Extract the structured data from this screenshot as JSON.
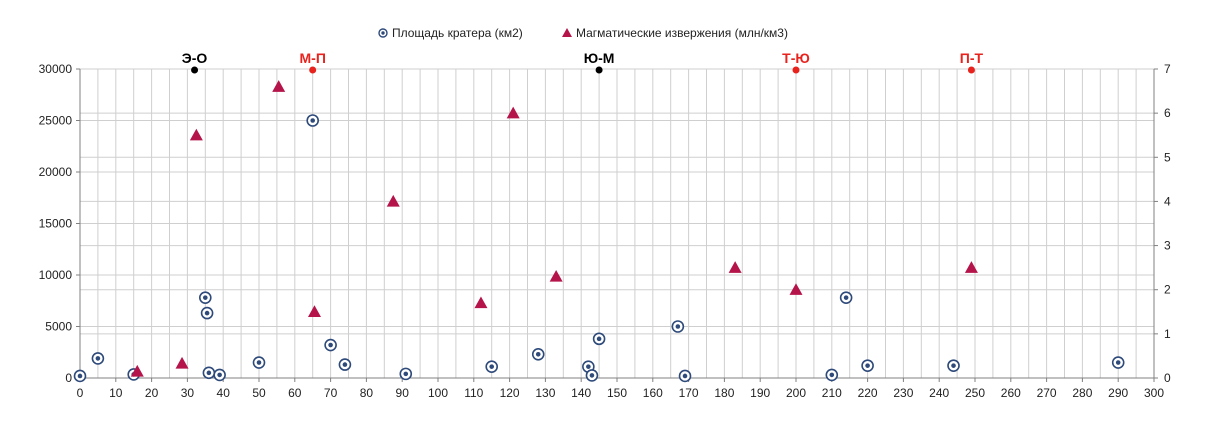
{
  "chart_data": {
    "type": "scatter",
    "title": "",
    "xlabel": "",
    "ylabel": "",
    "y2label": "",
    "xlim": [
      0,
      300
    ],
    "xticks": [
      0,
      10,
      20,
      30,
      40,
      50,
      60,
      70,
      80,
      90,
      100,
      110,
      120,
      130,
      140,
      150,
      160,
      170,
      180,
      190,
      200,
      210,
      220,
      230,
      240,
      250,
      260,
      270,
      280,
      290,
      300
    ],
    "ylim": [
      0,
      30000
    ],
    "yticks": [
      0,
      5000,
      10000,
      15000,
      20000,
      25000,
      30000
    ],
    "y2lim": [
      0,
      7
    ],
    "y2ticks": [
      0,
      1,
      2,
      3,
      4,
      5,
      6,
      7
    ],
    "grid": true,
    "legend_position": "top-center",
    "series": [
      {
        "name": "Площадь кратера (км2)",
        "axis": "left",
        "marker": "circle",
        "color": "#2e4a7a",
        "x": [
          0,
          5,
          15,
          35,
          35.5,
          36,
          39,
          50,
          65,
          70,
          74,
          91,
          115,
          128,
          142,
          143,
          145,
          167,
          169,
          210,
          214,
          220,
          244,
          290
        ],
        "y": [
          200,
          1900,
          350,
          7800,
          6300,
          500,
          300,
          1500,
          25000,
          3200,
          1300,
          400,
          1100,
          2300,
          1100,
          250,
          3800,
          5000,
          200,
          300,
          7800,
          1200,
          1200,
          1500
        ]
      },
      {
        "name": "Магматические извержения (млн/км3)",
        "axis": "right",
        "marker": "triangle",
        "color": "#b5144a",
        "x": [
          16,
          28.5,
          32.5,
          55.5,
          65.5,
          87.5,
          112,
          121,
          133,
          183,
          200,
          249
        ],
        "y": [
          0.15,
          0.33,
          5.5,
          6.6,
          1.5,
          4.0,
          1.7,
          6.0,
          2.3,
          2.5,
          2.0,
          2.5
        ]
      }
    ],
    "boundaries": [
      {
        "label": "Э-О",
        "x": 32,
        "color": "#000000"
      },
      {
        "label": "М-П",
        "x": 65,
        "color": "#e8231e"
      },
      {
        "label": "Ю-М",
        "x": 145,
        "color": "#000000"
      },
      {
        "label": "Т-Ю",
        "x": 200,
        "color": "#e8231e"
      },
      {
        "label": "П-Т",
        "x": 249,
        "color": "#e8231e"
      }
    ]
  }
}
